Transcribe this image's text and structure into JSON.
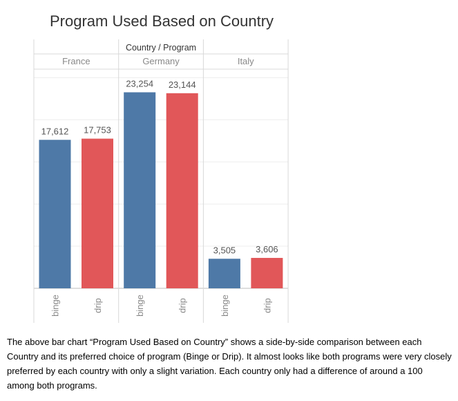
{
  "chart_data": {
    "type": "bar",
    "title": "Program Used Based on Country",
    "header": "Country / Program",
    "groups": [
      {
        "country": "France",
        "bars": [
          {
            "program": "binge",
            "value": 17612,
            "label": "17,612",
            "color": "#4e79a7"
          },
          {
            "program": "drip",
            "value": 17753,
            "label": "17,753",
            "color": "#e15759"
          }
        ]
      },
      {
        "country": "Germany",
        "bars": [
          {
            "program": "binge",
            "value": 23254,
            "label": "23,254",
            "color": "#4e79a7"
          },
          {
            "program": "drip",
            "value": 23144,
            "label": "23,144",
            "color": "#e15759"
          }
        ]
      },
      {
        "country": "Italy",
        "bars": [
          {
            "program": "binge",
            "value": 3505,
            "label": "3,505",
            "color": "#4e79a7"
          },
          {
            "program": "drip",
            "value": 3606,
            "label": "3,606",
            "color": "#e15759"
          }
        ]
      }
    ],
    "ylim": [
      0,
      26000
    ],
    "grid": true,
    "legend": "none"
  },
  "caption": "The above bar chart “Program Used Based on Country” shows a side-by-side comparison between each Country and its preferred choice of program (Binge or Drip). It almost looks like both programs were very closely preferred by each country with only a slight variation. Each country only had a difference of around a 100 among both programs."
}
